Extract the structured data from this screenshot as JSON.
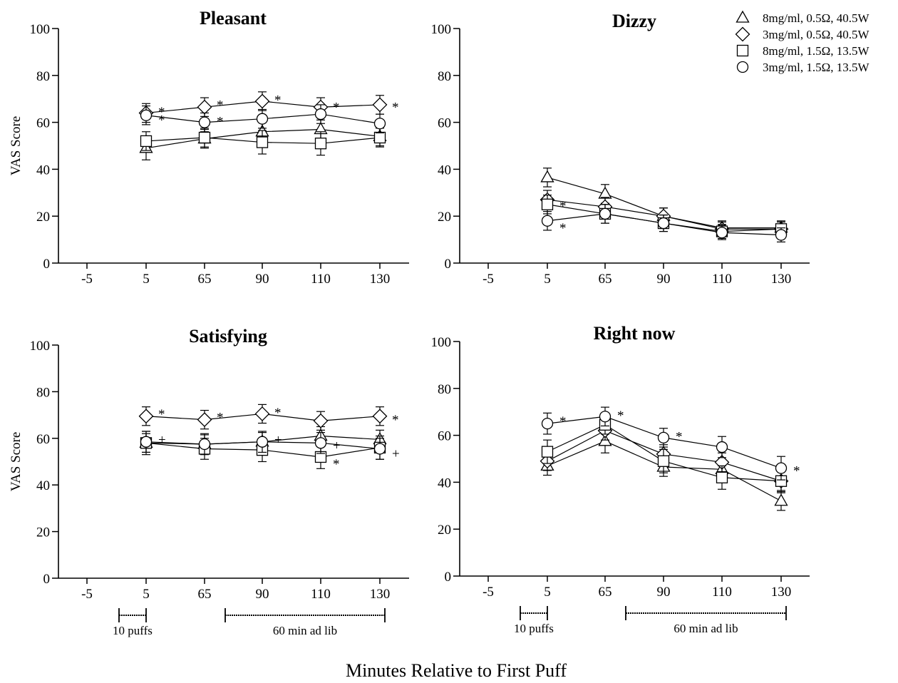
{
  "xlabel": "Minutes Relative to First Puff",
  "legend": [
    {
      "marker": "triangle",
      "label": "8mg/ml, 0.5Ω, 40.5W"
    },
    {
      "marker": "diamond",
      "label": "3mg/ml, 0.5Ω, 40.5W"
    },
    {
      "marker": "square",
      "label": "8mg/ml, 1.5Ω, 13.5W"
    },
    {
      "marker": "circle",
      "label": "3mg/ml, 1.5Ω, 13.5W"
    }
  ],
  "x_annotations": {
    "puffs": "10 puffs",
    "adlib": "60 min ad lib"
  },
  "chart_data": [
    {
      "type": "line",
      "title": "Pleasant",
      "ylabel": "VAS Score",
      "ylim": [
        0,
        100
      ],
      "categories": [
        "-5",
        "5",
        "65",
        "90",
        "110",
        "130"
      ],
      "series": [
        {
          "name": "8mg/ml, 0.5Ω, 40.5W",
          "marker": "triangle",
          "values": [
            null,
            49,
            53,
            56,
            57,
            54
          ],
          "errors": [
            null,
            5,
            4,
            4,
            4,
            4
          ]
        },
        {
          "name": "3mg/ml, 0.5Ω, 40.5W",
          "marker": "diamond",
          "values": [
            null,
            64,
            66.5,
            69,
            66.5,
            67.5
          ],
          "errors": [
            null,
            4,
            4,
            4,
            4,
            4
          ]
        },
        {
          "name": "8mg/ml, 1.5Ω, 13.5W",
          "marker": "square",
          "values": [
            null,
            52,
            53.5,
            51.5,
            51,
            53.5
          ],
          "errors": [
            null,
            4,
            4,
            5,
            5,
            4
          ]
        },
        {
          "name": "3mg/ml, 1.5Ω, 13.5W",
          "marker": "circle",
          "values": [
            null,
            63,
            60,
            61.5,
            63.5,
            59.5
          ],
          "errors": [
            null,
            4,
            4,
            4,
            4,
            4
          ]
        }
      ],
      "annotations": [
        {
          "x": "5",
          "y": 65,
          "text": "*"
        },
        {
          "x": "5",
          "y": 61.5,
          "text": "*"
        },
        {
          "x": "65",
          "y": 68,
          "text": "*"
        },
        {
          "x": "65",
          "y": 61,
          "text": "*"
        },
        {
          "x": "90",
          "y": 70,
          "text": "*"
        },
        {
          "x": "110",
          "y": 67,
          "text": "*"
        },
        {
          "x": "130",
          "y": 67,
          "text": "*"
        }
      ]
    },
    {
      "type": "line",
      "title": "Dizzy",
      "ylabel": "",
      "ylim": [
        0,
        100
      ],
      "categories": [
        "-5",
        "5",
        "65",
        "90",
        "110",
        "130"
      ],
      "series": [
        {
          "name": "8mg/ml, 0.5Ω, 40.5W",
          "marker": "triangle",
          "values": [
            null,
            36.5,
            29.5,
            20,
            15,
            15
          ],
          "errors": [
            null,
            4,
            4,
            3.5,
            3,
            3
          ]
        },
        {
          "name": "3mg/ml, 0.5Ω, 40.5W",
          "marker": "diamond",
          "values": [
            null,
            27,
            24,
            20,
            14.5,
            14.5
          ],
          "errors": [
            null,
            4,
            4,
            3.5,
            3,
            3
          ]
        },
        {
          "name": "8mg/ml, 1.5Ω, 13.5W",
          "marker": "square",
          "values": [
            null,
            25,
            21,
            17,
            13.5,
            14.5
          ],
          "errors": [
            null,
            4,
            4,
            3.5,
            3,
            3
          ]
        },
        {
          "name": "3mg/ml, 1.5Ω, 13.5W",
          "marker": "circle",
          "values": [
            null,
            18,
            21,
            17,
            13,
            12
          ],
          "errors": [
            null,
            4,
            4,
            3.5,
            3,
            3
          ]
        }
      ],
      "annotations": [
        {
          "x": "5",
          "y": 25,
          "text": "*"
        },
        {
          "x": "5",
          "y": 15.5,
          "text": "*"
        }
      ]
    },
    {
      "type": "line",
      "title": "Satisfying",
      "ylabel": "VAS Score",
      "ylim": [
        0,
        100
      ],
      "categories": [
        "-5",
        "5",
        "65",
        "90",
        "110",
        "130"
      ],
      "series": [
        {
          "name": "8mg/ml, 0.5Ω, 40.5W",
          "marker": "triangle",
          "values": [
            null,
            58,
            57.5,
            58.5,
            61,
            59.5
          ],
          "errors": [
            null,
            4,
            4,
            4,
            4,
            4
          ]
        },
        {
          "name": "3mg/ml, 0.5Ω, 40.5W",
          "marker": "diamond",
          "values": [
            null,
            69.5,
            68,
            70.5,
            67.5,
            69.5
          ],
          "errors": [
            null,
            4,
            4,
            4,
            4,
            4
          ]
        },
        {
          "name": "8mg/ml, 1.5Ω, 13.5W",
          "marker": "square",
          "values": [
            null,
            58,
            55.5,
            55,
            52,
            56
          ],
          "errors": [
            null,
            5,
            4.5,
            5,
            5,
            5
          ]
        },
        {
          "name": "3mg/ml, 1.5Ω, 13.5W",
          "marker": "circle",
          "values": [
            null,
            58.5,
            57.5,
            58.5,
            58,
            55.5
          ],
          "errors": [
            null,
            4.5,
            4.5,
            4.5,
            4.5,
            4.5
          ]
        }
      ],
      "annotations": [
        {
          "x": "5",
          "y": 71,
          "text": "*"
        },
        {
          "x": "5",
          "y": 60,
          "text": "+"
        },
        {
          "x": "65",
          "y": 69.5,
          "text": "*"
        },
        {
          "x": "90",
          "y": 71.5,
          "text": "*"
        },
        {
          "x": "90",
          "y": 60,
          "text": "+"
        },
        {
          "x": "110",
          "y": 57.5,
          "text": "+"
        },
        {
          "x": "110",
          "y": 49.5,
          "text": "*"
        },
        {
          "x": "130",
          "y": 68.5,
          "text": "*"
        },
        {
          "x": "130",
          "y": 54,
          "text": "+"
        }
      ]
    },
    {
      "type": "line",
      "title": "Right now",
      "ylabel": "",
      "ylim": [
        0,
        100
      ],
      "categories": [
        "-5",
        "5",
        "65",
        "90",
        "110",
        "130"
      ],
      "series": [
        {
          "name": "8mg/ml, 0.5Ω, 40.5W",
          "marker": "triangle",
          "values": [
            null,
            47,
            57.5,
            46.5,
            45.5,
            32
          ],
          "errors": [
            null,
            4,
            5,
            4,
            4,
            4
          ]
        },
        {
          "name": "3mg/ml, 0.5Ω, 40.5W",
          "marker": "diamond",
          "values": [
            null,
            49,
            62,
            52,
            48.5,
            40.5
          ],
          "errors": [
            null,
            4,
            4,
            4,
            4,
            4
          ]
        },
        {
          "name": "8mg/ml, 1.5Ω, 13.5W",
          "marker": "square",
          "values": [
            null,
            53,
            64.5,
            49,
            42,
            40.5
          ],
          "errors": [
            null,
            5,
            4,
            5,
            5,
            5
          ]
        },
        {
          "name": "3mg/ml, 1.5Ω, 13.5W",
          "marker": "circle",
          "values": [
            null,
            65,
            68,
            59,
            55,
            46
          ],
          "errors": [
            null,
            4.5,
            4,
            4,
            4.5,
            5
          ]
        }
      ],
      "annotations": [
        {
          "x": "5",
          "y": 66.5,
          "text": "*"
        },
        {
          "x": "65",
          "y": 69,
          "text": "*"
        },
        {
          "x": "90",
          "y": 60,
          "text": "*"
        },
        {
          "x": "130",
          "y": 45.5,
          "text": "*"
        }
      ]
    }
  ]
}
